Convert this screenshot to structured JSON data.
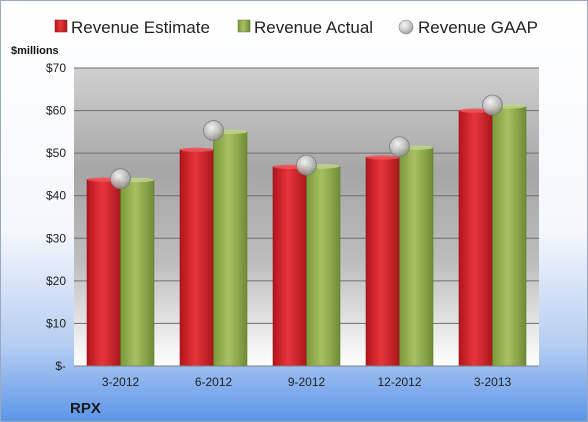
{
  "chart_data": {
    "type": "bar",
    "ylabel": "$millions",
    "corner_label": "RPX",
    "categories": [
      "3-2012",
      "6-2012",
      "9-2012",
      "12-2012",
      "3-2013"
    ],
    "series": [
      {
        "name": "Revenue Estimate",
        "kind": "bar",
        "values": [
          43.8,
          50.8,
          46.8,
          49.0,
          60.0
        ]
      },
      {
        "name": "Revenue Actual",
        "kind": "bar",
        "values": [
          43.7,
          55.0,
          46.9,
          51.3,
          61.0
        ]
      },
      {
        "name": "Revenue GAAP",
        "kind": "marker",
        "values": [
          44.0,
          55.3,
          47.2,
          51.5,
          61.3
        ]
      }
    ],
    "y_ticks": [
      {
        "value": 0,
        "label": "$-"
      },
      {
        "value": 10,
        "label": "$10"
      },
      {
        "value": 20,
        "label": "$20"
      },
      {
        "value": 30,
        "label": "$30"
      },
      {
        "value": 40,
        "label": "$40"
      },
      {
        "value": 50,
        "label": "$50"
      },
      {
        "value": 60,
        "label": "$60"
      },
      {
        "value": 70,
        "label": "$70"
      }
    ],
    "ylim": [
      0,
      70
    ],
    "grid": true,
    "legend_position": "top",
    "colors": {
      "estimate": "#cc1f27",
      "actual": "#8faa4b",
      "gaap": "#c8c8c8",
      "background_top": "#ffffff",
      "background_bottom": "#5b95e8"
    }
  }
}
